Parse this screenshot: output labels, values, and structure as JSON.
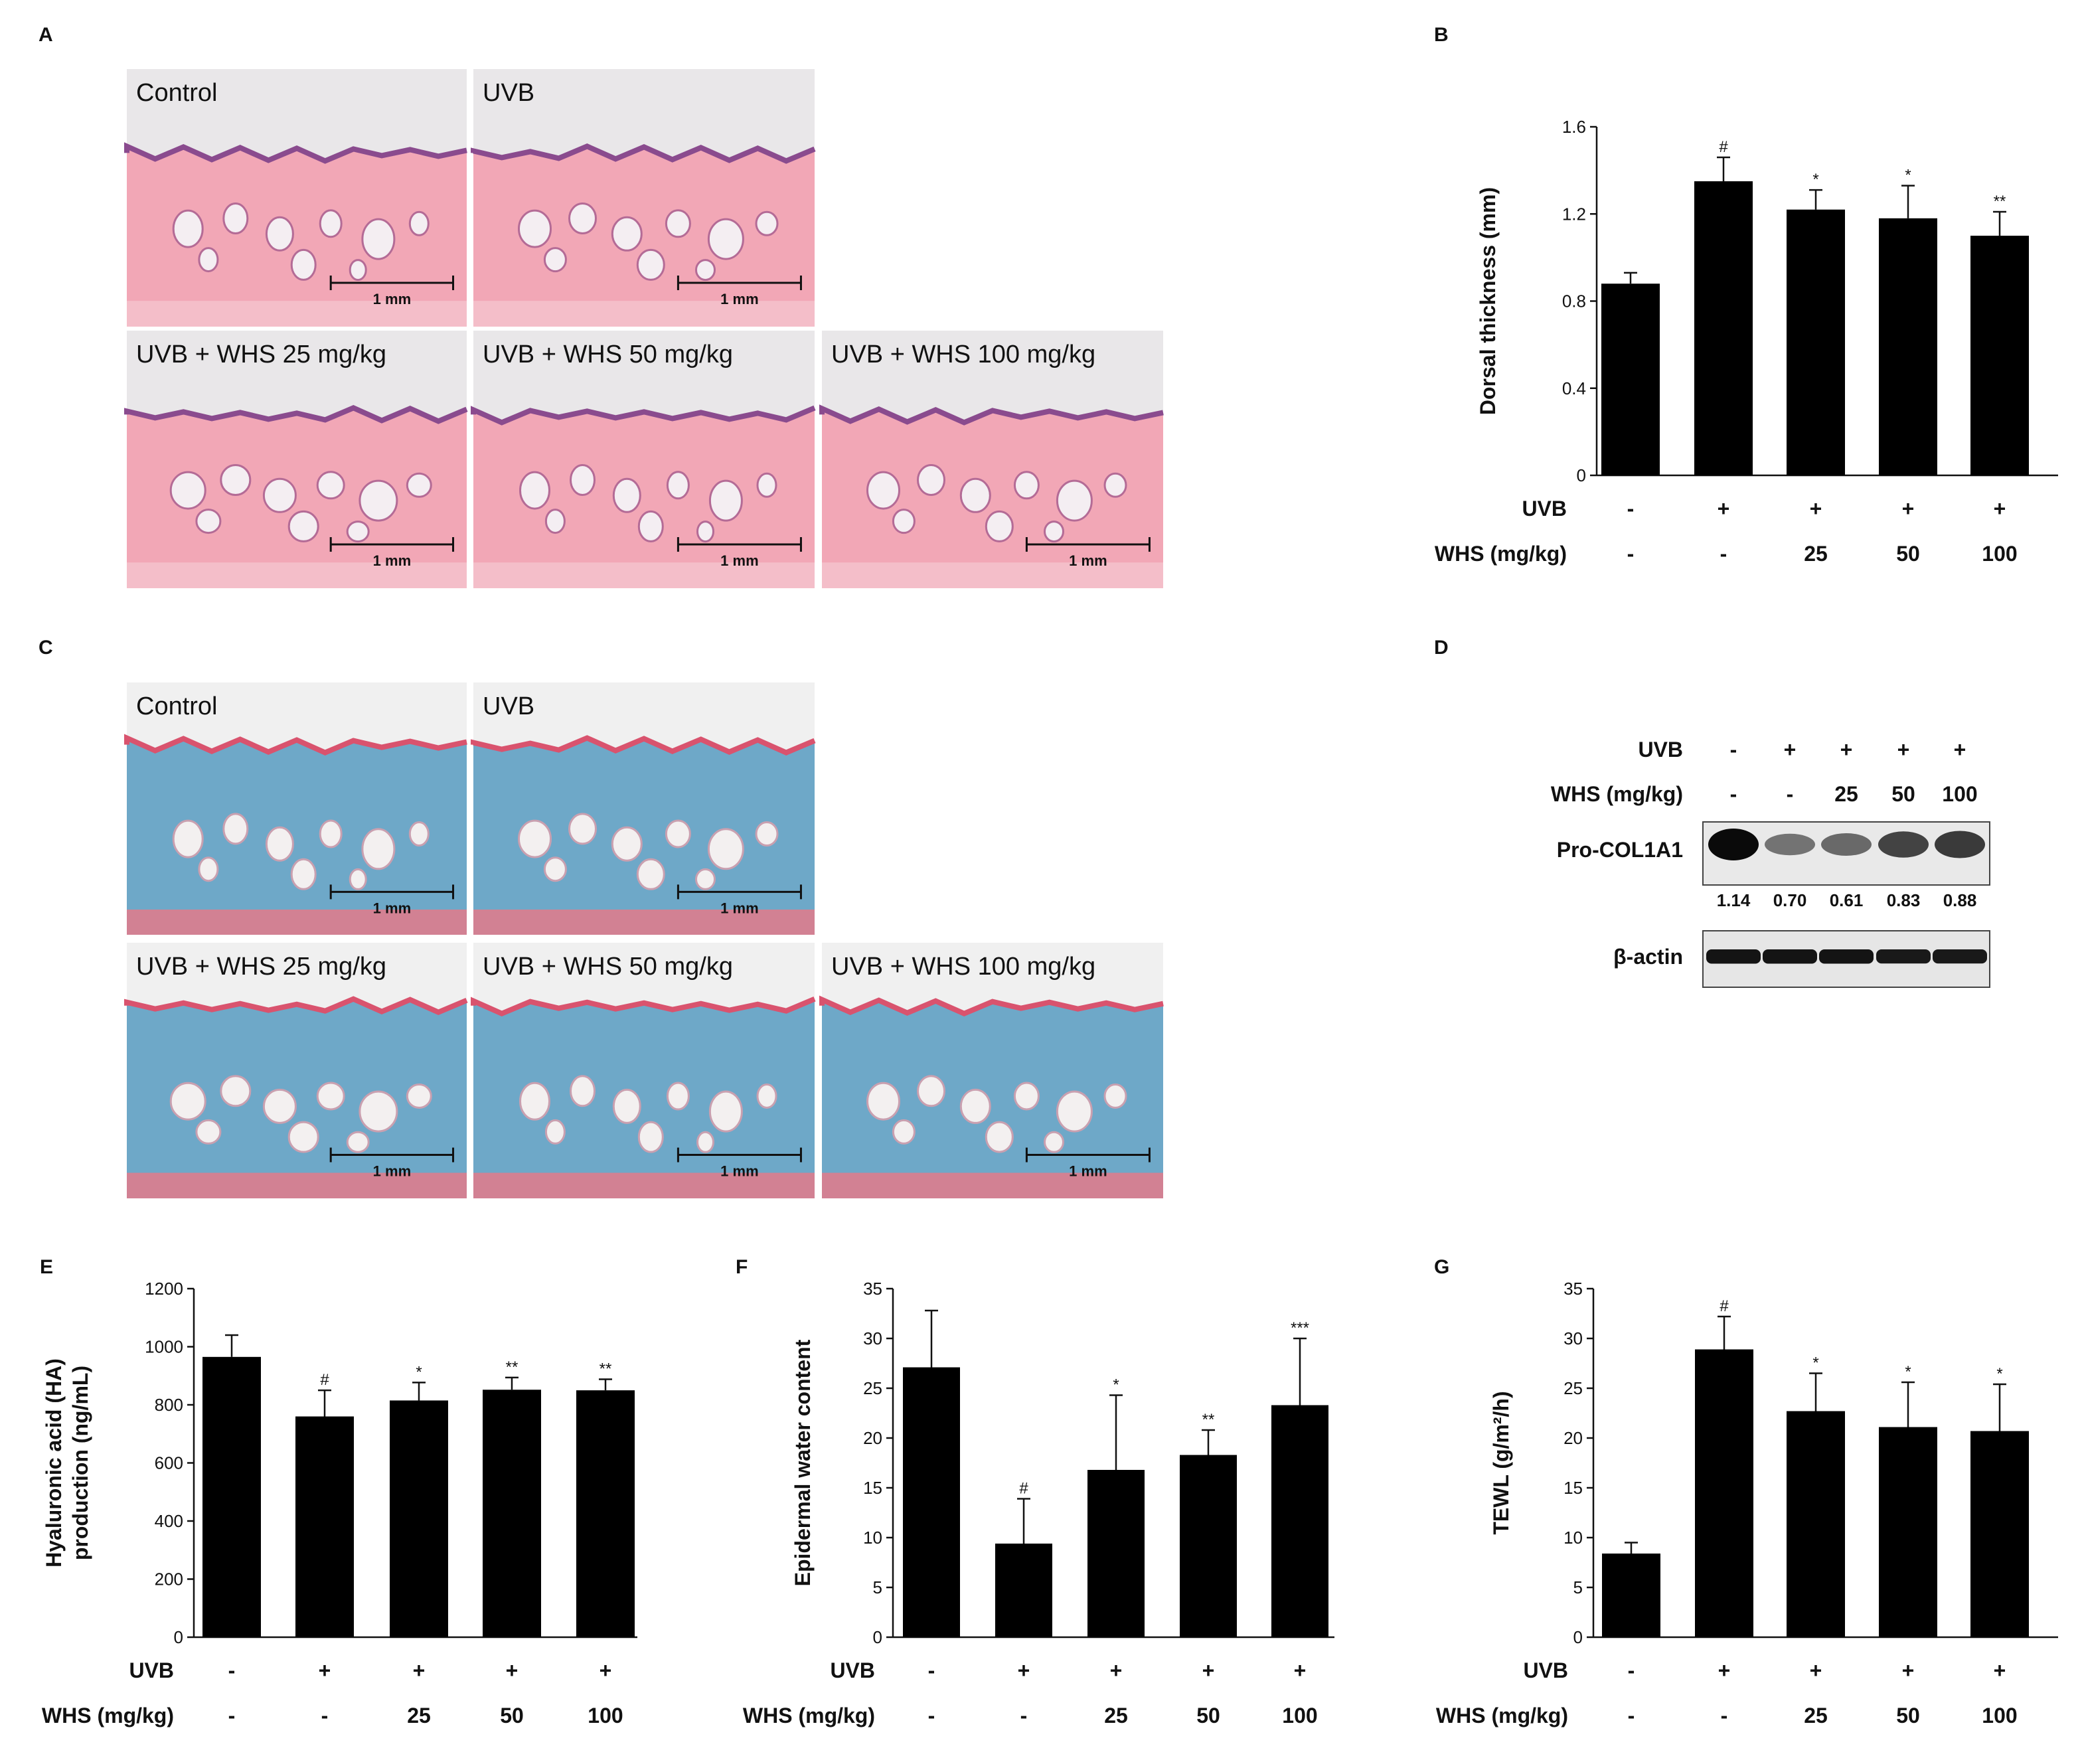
{
  "figure": {
    "panel_labels": {
      "A": "A",
      "B": "B",
      "C": "C",
      "D": "D",
      "E": "E",
      "F": "F",
      "G": "G"
    },
    "histology_labels": [
      "Control",
      "UVB",
      "UVB + WHS 25 mg/kg",
      "UVB + WHS 50 mg/kg",
      "UVB + WHS 100 mg/kg"
    ],
    "scale_bar_text": "1 mm",
    "stain_colors": {
      "he_bg": "#f2a7b6",
      "he_epi": "#8a4b8e",
      "he_fat": "#f4eef2",
      "mt_bg": "#6ea8c8",
      "mt_epi": "#d9536e",
      "mt_fat": "#f3f0f0",
      "muscle": "#e47a8a"
    },
    "row_labels": {
      "uvb": "UVB",
      "whs": "WHS (mg/kg)"
    },
    "uvb_row": [
      "-",
      "+",
      "+",
      "+",
      "+"
    ],
    "whs_row": [
      "-",
      "-",
      "25",
      "50",
      "100"
    ]
  },
  "western_blot": {
    "uvb_label": "UVB",
    "whs_label": "WHS (mg/kg)",
    "uvb_row": [
      "-",
      "+",
      "+",
      "+",
      "+"
    ],
    "whs_row": [
      "-",
      "-",
      "25",
      "50",
      "100"
    ],
    "band1_label": "Pro-COL1A1",
    "band1_intensity": [
      1.0,
      0.45,
      0.5,
      0.7,
      0.75
    ],
    "ratios": [
      "1.14",
      "0.70",
      "0.61",
      "0.83",
      "0.88"
    ],
    "band2_label": "β-actin",
    "band2_intensity": [
      0.95,
      0.95,
      0.95,
      0.92,
      0.92
    ]
  },
  "chart_data": [
    {
      "id": "B",
      "type": "bar",
      "title": "",
      "categories": [
        "Control",
        "UVB",
        "UVB+WHS 25",
        "UVB+WHS 50",
        "UVB+WHS 100"
      ],
      "values": [
        0.88,
        1.35,
        1.22,
        1.18,
        1.1
      ],
      "errors": [
        0.05,
        0.11,
        0.09,
        0.15,
        0.11
      ],
      "significance": [
        "",
        "#",
        "*",
        "*",
        "**"
      ],
      "ylabel": "Dorsal thickness (mm)",
      "ylim": [
        0,
        1.6
      ],
      "yticks": [
        0,
        0.4,
        0.8,
        1.2,
        1.6
      ],
      "ytick_labels": [
        "0",
        "0.4",
        "0.8",
        "1.2",
        "1.6"
      ]
    },
    {
      "id": "E",
      "type": "bar",
      "title": "",
      "categories": [
        "Control",
        "UVB",
        "UVB+WHS 25",
        "UVB+WHS 50",
        "UVB+WHS 100"
      ],
      "values": [
        965,
        760,
        815,
        852,
        850
      ],
      "errors": [
        75,
        90,
        62,
        42,
        38
      ],
      "significance": [
        "",
        "#",
        "*",
        "**",
        "**"
      ],
      "ylabel_lines": [
        "Hyaluronic acid (HA)",
        "production (ng/mL)"
      ],
      "ylim": [
        0,
        1200
      ],
      "yticks": [
        0,
        200,
        400,
        600,
        800,
        1000,
        1200
      ],
      "ytick_labels": [
        "0",
        "200",
        "400",
        "600",
        "800",
        "1000",
        "1200"
      ]
    },
    {
      "id": "F",
      "type": "bar",
      "title": "",
      "categories": [
        "Control",
        "UVB",
        "UVB+WHS 25",
        "UVB+WHS 50",
        "UVB+WHS 100"
      ],
      "values": [
        27.1,
        9.4,
        16.8,
        18.3,
        23.3
      ],
      "errors": [
        5.7,
        4.5,
        7.5,
        2.5,
        6.7
      ],
      "significance": [
        "",
        "#",
        "*",
        "**",
        "***"
      ],
      "ylabel": "Epidermal water content",
      "ylim": [
        0,
        35
      ],
      "yticks": [
        0,
        5,
        10,
        15,
        20,
        25,
        30,
        35
      ],
      "ytick_labels": [
        "0",
        "5",
        "10",
        "15",
        "20",
        "25",
        "30",
        "35"
      ]
    },
    {
      "id": "G",
      "type": "bar",
      "title": "",
      "categories": [
        "Control",
        "UVB",
        "UVB+WHS 25",
        "UVB+WHS 50",
        "UVB+WHS 100"
      ],
      "values": [
        8.4,
        28.9,
        22.7,
        21.1,
        20.7
      ],
      "errors": [
        1.1,
        3.3,
        3.8,
        4.5,
        4.7
      ],
      "significance": [
        "",
        "#",
        "*",
        "*",
        "*"
      ],
      "ylabel": "TEWL (g/m²/h)",
      "ylim": [
        0,
        35
      ],
      "yticks": [
        0,
        5,
        10,
        15,
        20,
        25,
        30,
        35
      ],
      "ytick_labels": [
        "0",
        "5",
        "10",
        "15",
        "20",
        "25",
        "30",
        "35"
      ]
    }
  ]
}
